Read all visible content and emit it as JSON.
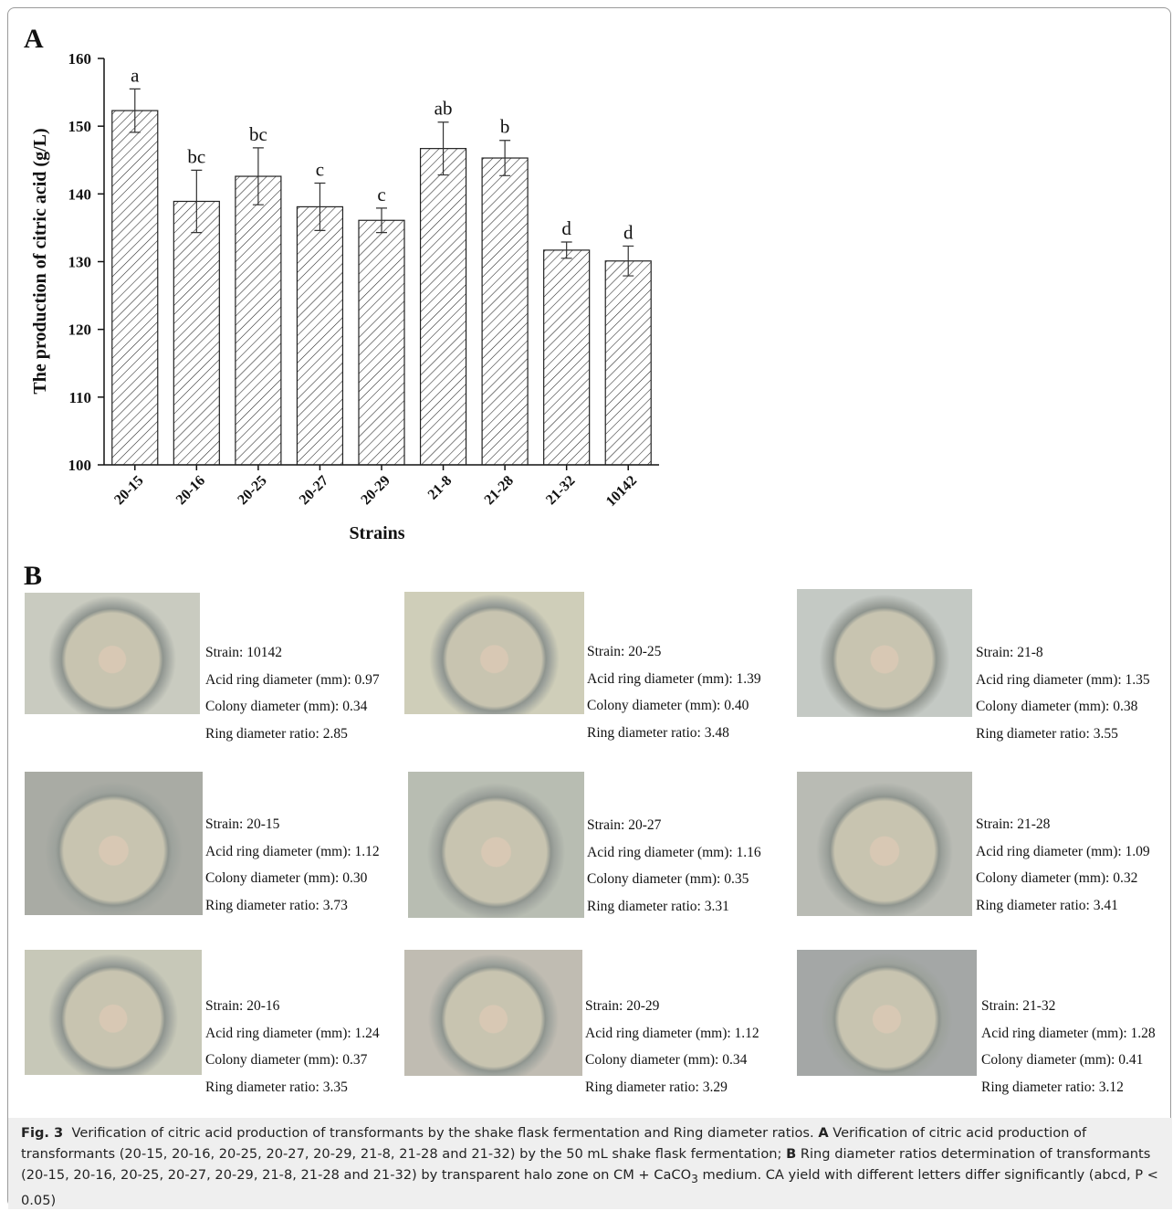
{
  "panel_a_label": "A",
  "chart_data": {
    "type": "bar",
    "y_label": "The production of citric acid (g/L)",
    "x_label": "Strains",
    "categories": [
      "20-15",
      "20-16",
      "20-25",
      "20-27",
      "20-29",
      "21-8",
      "21-28",
      "21-32",
      "10142"
    ],
    "values": [
      152.3,
      138.9,
      142.6,
      138.1,
      136.1,
      146.7,
      145.3,
      131.7,
      130.1
    ],
    "errors": [
      3.2,
      4.6,
      4.2,
      3.5,
      1.8,
      3.9,
      2.6,
      1.2,
      2.2
    ],
    "annotations": [
      "a",
      "bc",
      "bc",
      "c",
      "c",
      "ab",
      "b",
      "d",
      "d"
    ],
    "color": "#222222",
    "ylim": [
      100,
      160
    ],
    "yticks": [
      100,
      110,
      120,
      130,
      140,
      150,
      160
    ]
  },
  "panel_b": {
    "label": "B",
    "items": [
      {
        "strain": "Strain: 10142",
        "lines": [
          "Acid ring diameter (mm): 0.97",
          "Colony diameter (mm): 0.34",
          "Ring diameter ratio: 2.85"
        ]
      },
      {
        "strain": "Strain: 20-25",
        "lines": [
          "Acid ring diameter (mm): 1.39",
          "Colony diameter (mm): 0.40",
          "Ring diameter ratio: 3.48"
        ]
      },
      {
        "strain": "Strain: 21-8",
        "lines": [
          "Acid ring diameter (mm): 1.35",
          "Colony diameter (mm): 0.38",
          "Ring diameter ratio: 3.55"
        ]
      },
      {
        "strain": "Strain: 20-15",
        "lines": [
          "Acid ring diameter (mm): 1.12",
          "Colony diameter (mm): 0.30",
          "Ring diameter ratio: 3.73"
        ]
      },
      {
        "strain": "Strain: 20-27",
        "lines": [
          "Acid ring diameter (mm): 1.16",
          "Colony diameter (mm): 0.35",
          "Ring diameter ratio: 3.31"
        ]
      },
      {
        "strain": "Strain: 21-28",
        "lines": [
          "Acid ring diameter (mm): 1.09",
          "Colony diameter (mm): 0.32",
          "Ring diameter ratio: 3.41"
        ]
      },
      {
        "strain": "Strain: 20-16",
        "lines": [
          "Acid ring diameter (mm): 1.24",
          "Colony diameter (mm): 0.37",
          "Ring diameter ratio: 3.35"
        ]
      },
      {
        "strain": "Strain: 20-29",
        "lines": [
          "Acid ring diameter (mm): 1.12",
          "Colony diameter (mm): 0.34",
          "Ring diameter ratio: 3.29"
        ]
      },
      {
        "strain": "Strain:  21-32",
        "lines": [
          "Acid ring diameter (mm): 1.28",
          "Colony diameter (mm): 0.41",
          "Ring diameter ratio: 3.12"
        ]
      }
    ]
  },
  "caption": {
    "label": "Fig. 3",
    "intro": "Verification of citric acid production of transformants by the shake flask fermentation and Ring diameter ratios.",
    "a_label": "A",
    "a_text": "Verification of citric acid production of transformants (20-15, 20-16, 20-25, 20-27, 20-29, 21-8, 21-28 and 21-32) by the 50 mL shake flask fermentation;",
    "b_label": "B",
    "b_text": "Ring diameter ratios determination of transformants (20-15, 20-16, 20-25, 20-27, 20-29, 21-8, 21-28 and 21-32) by transparent halo zone on CM + CaCO",
    "subscript": "3",
    "end": "medium. CA yield with different letters differ significantly (abcd, P < 0.05)"
  }
}
